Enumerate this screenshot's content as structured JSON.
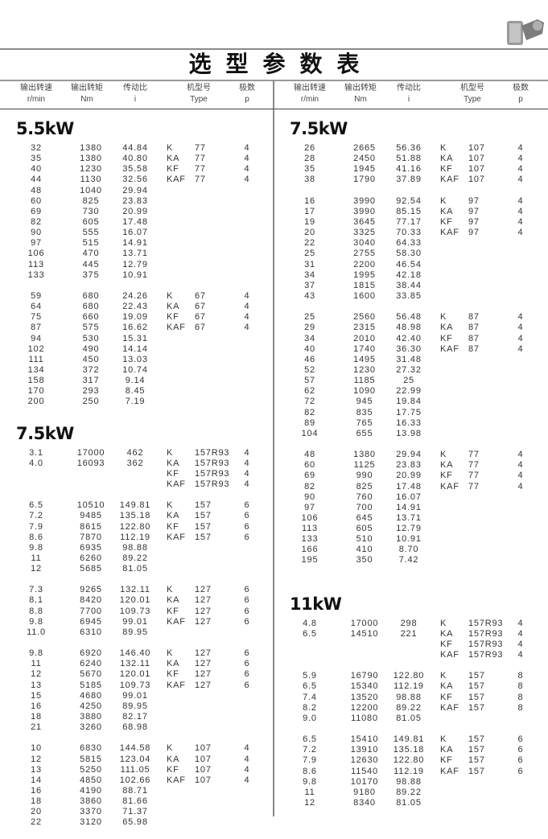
{
  "title": "选型参数表",
  "header": {
    "columns": [
      {
        "cn": "输出转速",
        "en": "r/min"
      },
      {
        "cn": "输出转矩",
        "en": "Nm"
      },
      {
        "cn": "传动比",
        "en": "i"
      },
      {
        "cn": "机型号",
        "en": "Type"
      },
      {
        "cn": "极数",
        "en": "p"
      }
    ]
  },
  "left": [
    {
      "power": "5.5kW",
      "groups": [
        {
          "rows": [
            [
              "32",
              "1380",
              "44.84"
            ],
            [
              "35",
              "1380",
              "40.80"
            ],
            [
              "40",
              "1230",
              "35.58"
            ],
            [
              "44",
              "1130",
              "32.56"
            ],
            [
              "48",
              "1040",
              "29.94"
            ],
            [
              "60",
              "825",
              "23.83"
            ],
            [
              "69",
              "730",
              "20.99"
            ],
            [
              "82",
              "605",
              "17.48"
            ],
            [
              "90",
              "555",
              "16.07"
            ],
            [
              "97",
              "515",
              "14.91"
            ],
            [
              "106",
              "470",
              "13.71"
            ],
            [
              "113",
              "445",
              "12.79"
            ],
            [
              "133",
              "375",
              "10.91"
            ]
          ],
          "types": [
            [
              "K",
              "77",
              "4"
            ],
            [
              "KA",
              "77",
              "4"
            ],
            [
              "KF",
              "77",
              "4"
            ],
            [
              "KAF",
              "77",
              "4"
            ]
          ]
        },
        {
          "rows": [
            [
              "59",
              "680",
              "24.26"
            ],
            [
              "64",
              "680",
              "22.43"
            ],
            [
              "75",
              "660",
              "19.09"
            ],
            [
              "87",
              "575",
              "16.62"
            ],
            [
              "94",
              "530",
              "15.31"
            ],
            [
              "102",
              "490",
              "14.14"
            ],
            [
              "111",
              "450",
              "13.03"
            ],
            [
              "134",
              "372",
              "10.74"
            ],
            [
              "158",
              "317",
              "9.14"
            ],
            [
              "170",
              "293",
              "8.45"
            ],
            [
              "200",
              "250",
              "7.19"
            ]
          ],
          "types": [
            [
              "K",
              "67",
              "4"
            ],
            [
              "KA",
              "67",
              "4"
            ],
            [
              "KF",
              "67",
              "4"
            ],
            [
              "KAF",
              "67",
              "4"
            ]
          ]
        }
      ]
    },
    {
      "power": "7.5kW",
      "groups": [
        {
          "rows": [
            [
              "3.1",
              "17000",
              "462"
            ],
            [
              "4.0",
              "16093",
              "362"
            ]
          ],
          "types": [
            [
              "K",
              "157R93",
              "4"
            ],
            [
              "KA",
              "157R93",
              "4"
            ],
            [
              "KF",
              "157R93",
              "4"
            ],
            [
              "KAF",
              "157R93",
              "4"
            ]
          ]
        },
        {
          "rows": [
            [
              "6.5",
              "10510",
              "149.81"
            ],
            [
              "7.2",
              "9485",
              "135.18"
            ],
            [
              "7.9",
              "8615",
              "122.80"
            ],
            [
              "8.6",
              "7870",
              "112.19"
            ],
            [
              "9.8",
              "6935",
              "98.88"
            ],
            [
              "11",
              "6260",
              "89.22"
            ],
            [
              "12",
              "5685",
              "81.05"
            ]
          ],
          "types": [
            [
              "K",
              "157",
              "6"
            ],
            [
              "KA",
              "157",
              "6"
            ],
            [
              "KF",
              "157",
              "6"
            ],
            [
              "KAF",
              "157",
              "6"
            ]
          ]
        },
        {
          "rows": [
            [
              "7.3",
              "9265",
              "132.11"
            ],
            [
              "8.1",
              "8420",
              "120.01"
            ],
            [
              "8.8",
              "7700",
              "109.73"
            ],
            [
              "9.8",
              "6945",
              "99.01"
            ],
            [
              "11.0",
              "6310",
              "89.95"
            ]
          ],
          "types": [
            [
              "K",
              "127",
              "6"
            ],
            [
              "KA",
              "127",
              "6"
            ],
            [
              "KF",
              "127",
              "6"
            ],
            [
              "KAF",
              "127",
              "6"
            ]
          ]
        },
        {
          "rows": [
            [
              "9.8",
              "6920",
              "146.40"
            ],
            [
              "11",
              "6240",
              "132.11"
            ],
            [
              "12",
              "5670",
              "120.01"
            ],
            [
              "13",
              "5185",
              "109.73"
            ],
            [
              "15",
              "4680",
              "99.01"
            ],
            [
              "16",
              "4250",
              "89.95"
            ],
            [
              "18",
              "3880",
              "82.17"
            ],
            [
              "21",
              "3260",
              "68.98"
            ]
          ],
          "types": [
            [
              "K",
              "127",
              "6"
            ],
            [
              "KA",
              "127",
              "6"
            ],
            [
              "KF",
              "127",
              "6"
            ],
            [
              "KAF",
              "127",
              "6"
            ]
          ]
        },
        {
          "rows": [
            [
              "10",
              "6830",
              "144.58"
            ],
            [
              "12",
              "5815",
              "123.04"
            ],
            [
              "13",
              "5250",
              "111.05"
            ],
            [
              "14",
              "4850",
              "102.66"
            ],
            [
              "16",
              "4190",
              "88.71"
            ],
            [
              "18",
              "3860",
              "81.66"
            ],
            [
              "20",
              "3370",
              "71.37"
            ],
            [
              "22",
              "3120",
              "65.98"
            ]
          ],
          "types": [
            [
              "K",
              "107",
              "4"
            ],
            [
              "KA",
              "107",
              "4"
            ],
            [
              "KF",
              "107",
              "4"
            ],
            [
              "KAF",
              "107",
              "4"
            ]
          ]
        }
      ]
    }
  ],
  "right": [
    {
      "power": "7.5kW",
      "groups": [
        {
          "rows": [
            [
              "26",
              "2665",
              "56.36"
            ],
            [
              "28",
              "2450",
              "51.88"
            ],
            [
              "35",
              "1945",
              "41.16"
            ],
            [
              "38",
              "1790",
              "37.89"
            ]
          ],
          "types": [
            [
              "K",
              "107",
              "4"
            ],
            [
              "KA",
              "107",
              "4"
            ],
            [
              "KF",
              "107",
              "4"
            ],
            [
              "KAF",
              "107",
              "4"
            ]
          ]
        },
        {
          "rows": [
            [
              "16",
              "3990",
              "92.54"
            ],
            [
              "17",
              "3990",
              "85.15"
            ],
            [
              "19",
              "3645",
              "77.17"
            ],
            [
              "20",
              "3325",
              "70.33"
            ],
            [
              "22",
              "3040",
              "64.33"
            ],
            [
              "25",
              "2755",
              "58.30"
            ],
            [
              "31",
              "2200",
              "46.54"
            ],
            [
              "34",
              "1995",
              "42.18"
            ],
            [
              "37",
              "1815",
              "38.44"
            ],
            [
              "43",
              "1600",
              "33.85"
            ]
          ],
          "types": [
            [
              "K",
              "97",
              "4"
            ],
            [
              "KA",
              "97",
              "4"
            ],
            [
              "KF",
              "97",
              "4"
            ],
            [
              "KAF",
              "97",
              "4"
            ]
          ]
        },
        {
          "rows": [
            [
              "25",
              "2560",
              "56.48"
            ],
            [
              "29",
              "2315",
              "48.98"
            ],
            [
              "34",
              "2010",
              "42.40"
            ],
            [
              "40",
              "1740",
              "36.30"
            ],
            [
              "46",
              "1495",
              "31.48"
            ],
            [
              "52",
              "1230",
              "27.32"
            ],
            [
              "57",
              "1185",
              "25"
            ],
            [
              "62",
              "1090",
              "22.99"
            ],
            [
              "72",
              "945",
              "19.84"
            ],
            [
              "82",
              "835",
              "17.75"
            ],
            [
              "89",
              "765",
              "16.33"
            ],
            [
              "104",
              "655",
              "13.98"
            ]
          ],
          "types": [
            [
              "K",
              "87",
              "4"
            ],
            [
              "KA",
              "87",
              "4"
            ],
            [
              "KF",
              "87",
              "4"
            ],
            [
              "KAF",
              "87",
              "4"
            ]
          ]
        },
        {
          "rows": [
            [
              "48",
              "1380",
              "29.94"
            ],
            [
              "60",
              "1125",
              "23.83"
            ],
            [
              "69",
              "990",
              "20.99"
            ],
            [
              "82",
              "825",
              "17.48"
            ],
            [
              "90",
              "760",
              "16.07"
            ],
            [
              "97",
              "700",
              "14.91"
            ],
            [
              "106",
              "645",
              "13.71"
            ],
            [
              "113",
              "605",
              "12.79"
            ],
            [
              "133",
              "510",
              "10.91"
            ],
            [
              "166",
              "410",
              "8.70"
            ],
            [
              "195",
              "350",
              "7.42"
            ]
          ],
          "types": [
            [
              "K",
              "77",
              "4"
            ],
            [
              "KA",
              "77",
              "4"
            ],
            [
              "KF",
              "77",
              "4"
            ],
            [
              "KAF",
              "77",
              "4"
            ]
          ]
        }
      ]
    },
    {
      "power": "11kW",
      "groups": [
        {
          "rows": [
            [
              "4.8",
              "17000",
              "298"
            ],
            [
              "6.5",
              "14510",
              "221"
            ]
          ],
          "types": [
            [
              "K",
              "157R93",
              "4"
            ],
            [
              "KA",
              "157R93",
              "4"
            ],
            [
              "KF",
              "157R93",
              "4"
            ],
            [
              "KAF",
              "157R93",
              "4"
            ]
          ]
        },
        {
          "rows": [
            [
              "5.9",
              "16790",
              "122.80"
            ],
            [
              "6.5",
              "15340",
              "112.19"
            ],
            [
              "7.4",
              "13520",
              "98.88"
            ],
            [
              "8.2",
              "12200",
              "89.22"
            ],
            [
              "9.0",
              "11080",
              "81.05"
            ]
          ],
          "types": [
            [
              "K",
              "157",
              "8"
            ],
            [
              "KA",
              "157",
              "8"
            ],
            [
              "KF",
              "157",
              "8"
            ],
            [
              "KAF",
              "157",
              "8"
            ]
          ]
        },
        {
          "rows": [
            [
              "6.5",
              "15410",
              "149.81"
            ],
            [
              "7.2",
              "13910",
              "135.18"
            ],
            [
              "7.9",
              "12630",
              "122.80"
            ],
            [
              "8.6",
              "11540",
              "112.19"
            ],
            [
              "9.8",
              "10170",
              "98.88"
            ],
            [
              "11",
              "9180",
              "89.22"
            ],
            [
              "12",
              "8340",
              "81.05"
            ]
          ],
          "types": [
            [
              "K",
              "157",
              "6"
            ],
            [
              "KA",
              "157",
              "6"
            ],
            [
              "KF",
              "157",
              "6"
            ],
            [
              "KAF",
              "157",
              "6"
            ]
          ]
        }
      ]
    }
  ]
}
